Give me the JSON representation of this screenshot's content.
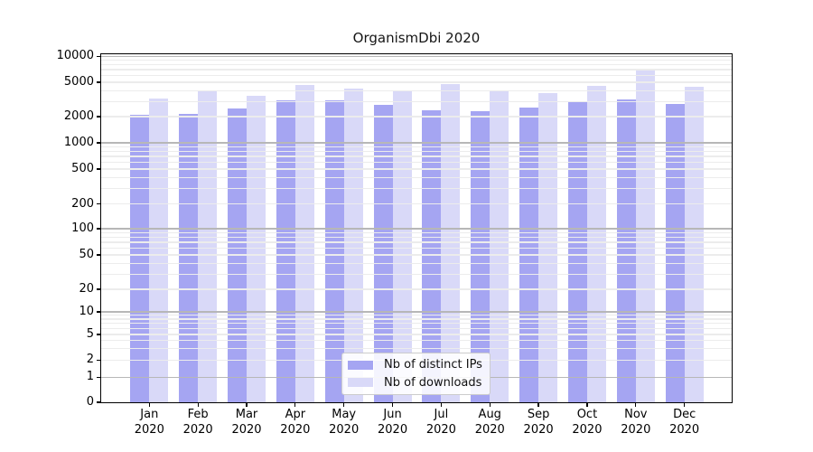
{
  "title": "OrganismDbi 2020",
  "chart_data": {
    "type": "bar",
    "title": "OrganismDbi 2020",
    "yscale": "log (0 pinned at axis bottom)",
    "grid": "on",
    "legend_position": "lower center, inside axes",
    "year": "2020",
    "categories": [
      "Jan",
      "Feb",
      "Mar",
      "Apr",
      "May",
      "Jun",
      "Jul",
      "Aug",
      "Sep",
      "Oct",
      "Nov",
      "Dec"
    ],
    "y_ticks": [
      10000,
      5000,
      2000,
      1000,
      500,
      200,
      100,
      50,
      20,
      10,
      5,
      2,
      1,
      0
    ],
    "ylim": [
      0,
      10000
    ],
    "series": [
      {
        "name": "Nb of distinct IPs",
        "color": "#a5a5f2",
        "values": [
          2110,
          2170,
          2480,
          3110,
          3100,
          2740,
          2380,
          2300,
          2530,
          2920,
          3160,
          2800
        ]
      },
      {
        "name": "Nb of downloads",
        "color": "#d9d9f8",
        "values": [
          3210,
          4020,
          3480,
          4620,
          4200,
          3930,
          4720,
          3950,
          3770,
          4540,
          6890,
          4460
        ]
      }
    ]
  }
}
